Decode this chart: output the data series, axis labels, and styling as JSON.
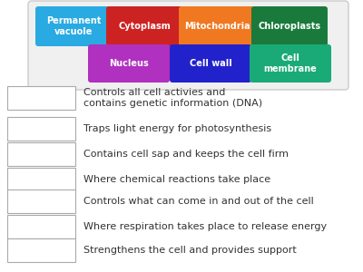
{
  "background_color": "#ffffff",
  "legend_items_row1": [
    {
      "label": "Permanent\nvacuole",
      "color": "#29aae2"
    },
    {
      "label": "Cytoplasm",
      "color": "#cc2222"
    },
    {
      "label": "Mitochondria",
      "color": "#f07820"
    },
    {
      "label": "Chloroplasts",
      "color": "#1a7a3c"
    }
  ],
  "legend_items_row2": [
    {
      "label": "Nucleus",
      "color": "#b030c0"
    },
    {
      "label": "Cell wall",
      "color": "#2222cc"
    },
    {
      "label": "Cell\nmembrane",
      "color": "#1aaa78"
    }
  ],
  "rows": [
    "Controls all cell activies and\ncontains genetic information (DNA)",
    "Traps light energy for photosynthesis",
    "Contains cell sap and keeps the cell firm",
    "Where chemical reactions take place",
    "Controls what can come in and out of the cell",
    "Where respiration takes place to release energy",
    "Strengthens the cell and provides support"
  ],
  "legend_font_size": 7,
  "row_font_size": 8
}
